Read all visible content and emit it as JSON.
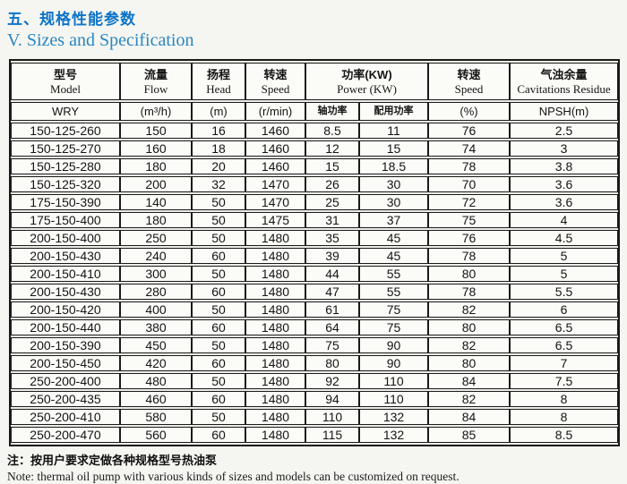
{
  "page": {
    "title_zh": "五、规格性能参数",
    "title_en": "V.  Sizes and Specification",
    "note_zh": "注：按用户要求定做各种规格型号热油泵",
    "note_en": "Note: thermal oil pump with various kinds of sizes and models can be customized on request."
  },
  "colors": {
    "title_blue": "#0d74c9",
    "subtitle_blue": "#2b86c3",
    "border_black": "#1a1a1a",
    "cell_bg": "#fbfbf7",
    "page_bg": "#f5f6f1"
  },
  "table": {
    "header": {
      "columns": [
        {
          "zh": "型号",
          "en": "Model",
          "unit": "WRY"
        },
        {
          "zh": "流量",
          "en": "Flow",
          "unit": "(m³/h)"
        },
        {
          "zh": "扬程",
          "en": "Head",
          "unit": "(m)"
        },
        {
          "zh": "转速",
          "en": "Speed",
          "unit": "(r/min)"
        },
        {
          "zh": "功率(KW)",
          "en": "Power (KW)",
          "sub": [
            "轴功率",
            "配用功率"
          ]
        },
        {
          "zh": "转速",
          "en": "Speed",
          "unit": "(%)"
        },
        {
          "zh": "气浊余量",
          "en": "Cavitations Residue",
          "unit": "NPSH(m)"
        }
      ]
    },
    "rows": [
      [
        "150-125-260",
        "150",
        "16",
        "1460",
        "8.5",
        "11",
        "76",
        "2.5"
      ],
      [
        "150-125-270",
        "160",
        "18",
        "1460",
        "12",
        "15",
        "74",
        "3"
      ],
      [
        "150-125-280",
        "180",
        "20",
        "1460",
        "15",
        "18.5",
        "78",
        "3.8"
      ],
      [
        "150-125-320",
        "200",
        "32",
        "1470",
        "26",
        "30",
        "70",
        "3.6"
      ],
      [
        "175-150-390",
        "140",
        "50",
        "1470",
        "25",
        "30",
        "72",
        "3.6"
      ],
      [
        "175-150-400",
        "180",
        "50",
        "1475",
        "31",
        "37",
        "75",
        "4"
      ],
      [
        "200-150-400",
        "250",
        "50",
        "1480",
        "35",
        "45",
        "76",
        "4.5"
      ],
      [
        "200-150-430",
        "240",
        "60",
        "1480",
        "39",
        "45",
        "78",
        "5"
      ],
      [
        "200-150-410",
        "300",
        "50",
        "1480",
        "44",
        "55",
        "80",
        "5"
      ],
      [
        "200-150-430",
        "280",
        "60",
        "1480",
        "47",
        "55",
        "78",
        "5.5"
      ],
      [
        "200-150-420",
        "400",
        "50",
        "1480",
        "61",
        "75",
        "82",
        "6"
      ],
      [
        "200-150-440",
        "380",
        "60",
        "1480",
        "64",
        "75",
        "80",
        "6.5"
      ],
      [
        "200-150-390",
        "450",
        "50",
        "1480",
        "75",
        "90",
        "82",
        "6.5"
      ],
      [
        "200-150-450",
        "420",
        "60",
        "1480",
        "80",
        "90",
        "80",
        "7"
      ],
      [
        "250-200-400",
        "480",
        "50",
        "1480",
        "92",
        "110",
        "84",
        "7.5"
      ],
      [
        "250-200-435",
        "460",
        "60",
        "1480",
        "94",
        "110",
        "82",
        "8"
      ],
      [
        "250-200-410",
        "580",
        "50",
        "1480",
        "110",
        "132",
        "84",
        "8"
      ],
      [
        "250-200-470",
        "560",
        "60",
        "1480",
        "115",
        "132",
        "85",
        "8.5"
      ]
    ],
    "column_keys": [
      "model",
      "flow",
      "head",
      "speed-rpm",
      "shaft-power",
      "rated-power",
      "speed-pct",
      "npsh"
    ]
  }
}
